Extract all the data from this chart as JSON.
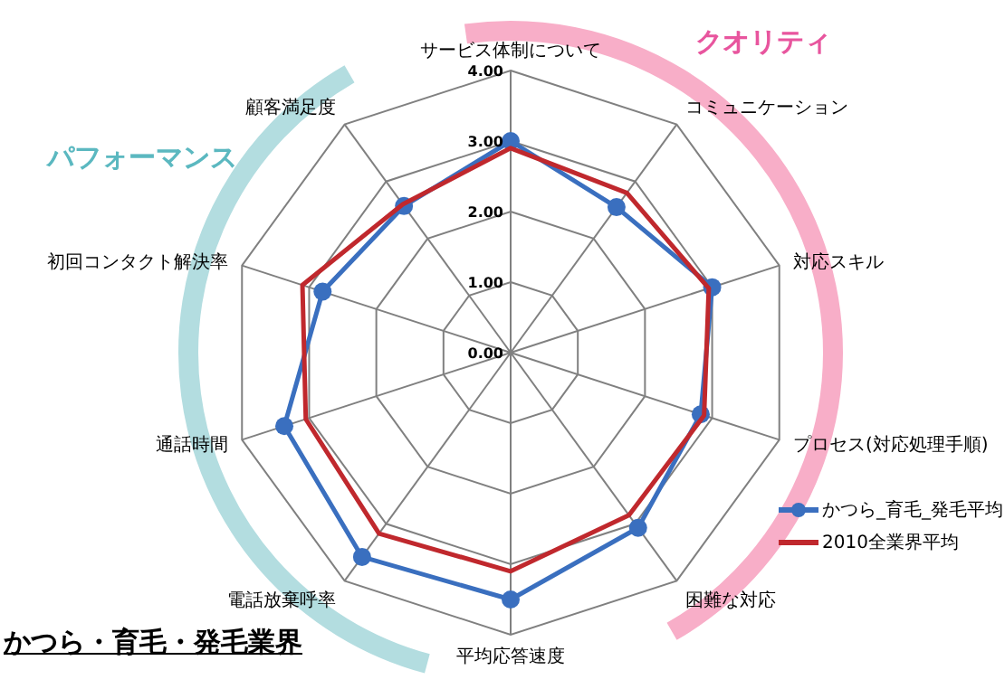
{
  "chart_data": {
    "type": "radar",
    "title": "かつら・育毛・発毛業界",
    "annotations": [
      "クオリティ",
      "パフォーマンス"
    ],
    "categories": [
      "サービス体制について",
      "コミュニケーション",
      "対応スキル",
      "プロセス(対応処理手順)",
      "困難な対応",
      "平均応答速度",
      "電話放棄呼率",
      "通話時間",
      "初回コンタクト解決率",
      "顧客満足度"
    ],
    "series": [
      {
        "name": "かつら_育毛_発毛平均",
        "color": "#3a6fbf",
        "marker": "circle",
        "values": [
          3.0,
          2.55,
          3.0,
          2.83,
          3.07,
          3.5,
          3.58,
          3.37,
          2.8,
          2.57
        ]
      },
      {
        "name": "2010全業界平均",
        "color": "#c0282d",
        "marker": "none",
        "values": [
          2.9,
          2.8,
          2.95,
          2.88,
          2.85,
          3.1,
          3.17,
          3.05,
          3.1,
          2.6
        ]
      }
    ],
    "ylim": [
      0,
      4
    ],
    "yticks": [
      {
        "value": 0,
        "label": "0.00"
      },
      {
        "value": 1,
        "label": "1.00"
      },
      {
        "value": 2,
        "label": "2.00"
      },
      {
        "value": 3,
        "label": "3.00"
      },
      {
        "value": 4,
        "label": "4.00"
      }
    ],
    "grid": true,
    "legend": "right"
  }
}
